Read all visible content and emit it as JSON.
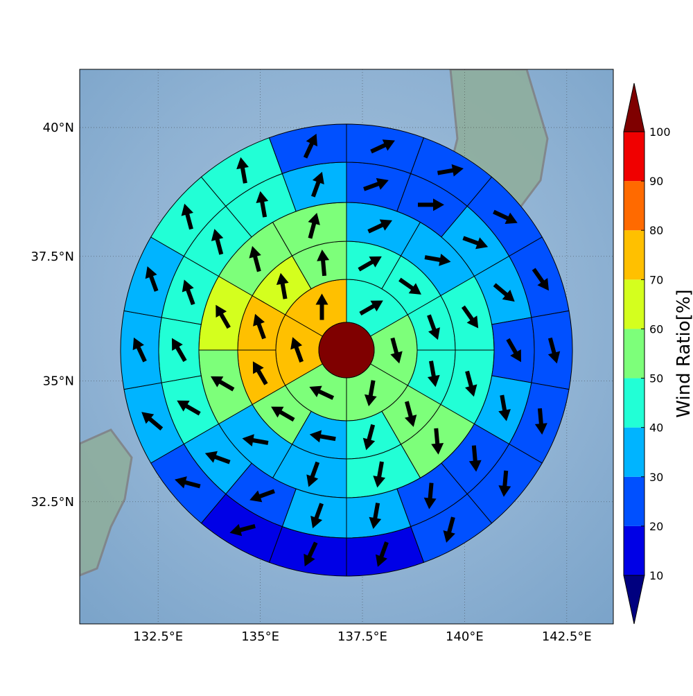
{
  "chart_data": {
    "type": "wind_rose_map",
    "projection": "mercator",
    "grid": true,
    "xlim": [
      130.58,
      143.64
    ],
    "ylim": [
      29.9,
      41.1
    ],
    "xticks": [
      {
        "value": 132.5,
        "label": "132.5°E"
      },
      {
        "value": 135,
        "label": "135°E"
      },
      {
        "value": 137.5,
        "label": "137.5°E"
      },
      {
        "value": 140,
        "label": "140°E"
      },
      {
        "value": 142.5,
        "label": "142.5°E"
      }
    ],
    "yticks": [
      {
        "value": 32.5,
        "label": "32.5°N"
      },
      {
        "value": 35,
        "label": "35°N"
      },
      {
        "value": 37.5,
        "label": "37.5°N"
      },
      {
        "value": 40,
        "label": "40°N"
      }
    ],
    "colorbar": {
      "label": "Wind Ratio[%]",
      "ticks": [
        10,
        20,
        30,
        40,
        50,
        60,
        70,
        80,
        90,
        100
      ],
      "colors": [
        "#00007f",
        "#0000e6",
        "#0050ff",
        "#00b4ff",
        "#22ffd6",
        "#7dff7a",
        "#d4ff1e",
        "#ffc000",
        "#ff6a00",
        "#f00000",
        "#7f0000"
      ],
      "extend": "both"
    },
    "center_value": 100,
    "rings": [
      {
        "values": [
          45,
          55,
          55,
          55,
          75,
          75
        ],
        "directions": [
          60,
          165,
          190,
          295,
          340,
          0
        ]
      },
      {
        "values": [
          45,
          45,
          45,
          45,
          55,
          45,
          35,
          55,
          75,
          75,
          65,
          55
        ],
        "directions": [
          60,
          125,
          160,
          170,
          165,
          195,
          280,
          300,
          330,
          340,
          350,
          355
        ]
      },
      {
        "values": [
          35,
          35,
          45,
          45,
          55,
          45,
          35,
          35,
          55,
          65,
          55,
          55
        ],
        "directions": [
          65,
          100,
          145,
          165,
          175,
          190,
          200,
          280,
          300,
          330,
          345,
          15
        ]
      },
      {
        "values": [
          25,
          25,
          35,
          35,
          25,
          35,
          25,
          25,
          35,
          35,
          25,
          35,
          45,
          45,
          45,
          45,
          45,
          35
        ],
        "directions": [
          70,
          90,
          110,
          130,
          150,
          170,
          175,
          185,
          190,
          200,
          250,
          290,
          300,
          330,
          340,
          345,
          350,
          20
        ]
      },
      {
        "values": [
          25,
          25,
          25,
          25,
          25,
          25,
          25,
          25,
          15,
          15,
          15,
          25,
          35,
          35,
          35,
          45,
          45,
          25
        ],
        "directions": [
          65,
          80,
          115,
          145,
          165,
          175,
          185,
          195,
          200,
          205,
          255,
          285,
          310,
          335,
          340,
          345,
          350,
          25
        ]
      }
    ]
  }
}
